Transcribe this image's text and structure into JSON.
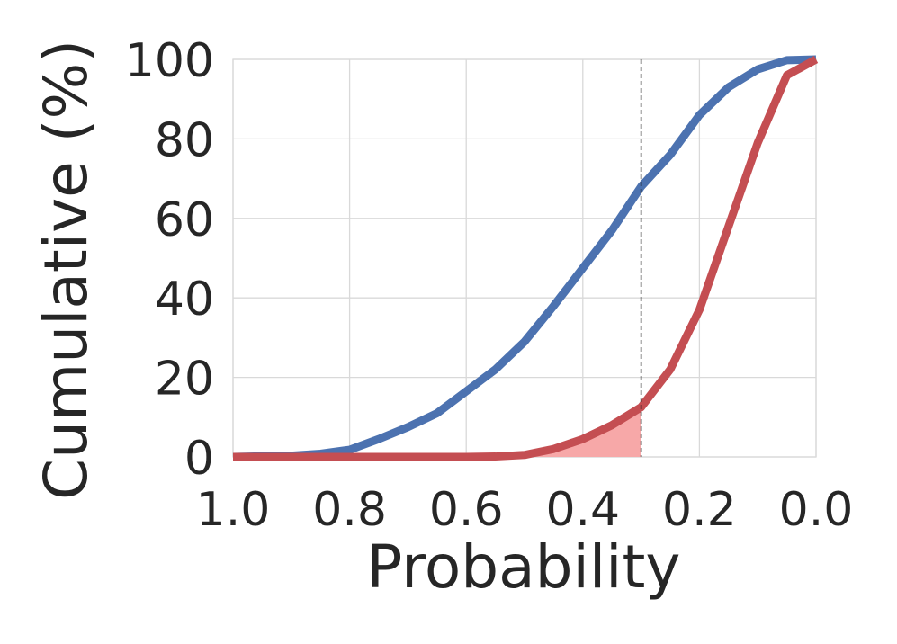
{
  "chart_data": {
    "type": "line",
    "title": "",
    "xlabel": "Probability",
    "ylabel": "Cumulative (%)",
    "xlim": [
      1.0,
      0.0
    ],
    "ylim": [
      0,
      100
    ],
    "x_reversed": true,
    "x_ticks": [
      1.0,
      0.8,
      0.6,
      0.4,
      0.2,
      0.0
    ],
    "x_tick_labels": [
      "1.0",
      "0.8",
      "0.6",
      "0.4",
      "0.2",
      "0.0"
    ],
    "y_ticks": [
      0,
      20,
      40,
      60,
      80,
      100
    ],
    "y_tick_labels": [
      "0",
      "20",
      "40",
      "60",
      "80",
      "100"
    ],
    "grid": true,
    "legend": "none",
    "threshold_x": 0.3,
    "shaded_region": {
      "series_index": 1,
      "from_x": 0.3,
      "to_x": 1.0,
      "color": "#f7a8a8"
    },
    "series": [
      {
        "color": "#4c72b0",
        "x": [
          1.0,
          0.9,
          0.85,
          0.8,
          0.75,
          0.7,
          0.65,
          0.6,
          0.55,
          0.5,
          0.45,
          0.4,
          0.35,
          0.3,
          0.25,
          0.2,
          0.15,
          0.1,
          0.05,
          0.0
        ],
        "y": [
          0,
          0.3,
          0.8,
          1.8,
          4.5,
          7.5,
          11,
          16.5,
          22,
          29,
          38,
          47.5,
          57,
          68,
          76,
          86,
          93,
          97.5,
          99.8,
          100
        ]
      },
      {
        "color": "#c44e52",
        "x": [
          1.0,
          0.9,
          0.8,
          0.7,
          0.6,
          0.55,
          0.5,
          0.45,
          0.4,
          0.35,
          0.3,
          0.25,
          0.2,
          0.15,
          0.1,
          0.05,
          0.0
        ],
        "y": [
          0,
          0,
          0,
          0,
          0,
          0.1,
          0.5,
          2,
          4.5,
          8,
          12.5,
          22,
          37,
          58,
          79,
          96,
          100
        ]
      }
    ]
  }
}
